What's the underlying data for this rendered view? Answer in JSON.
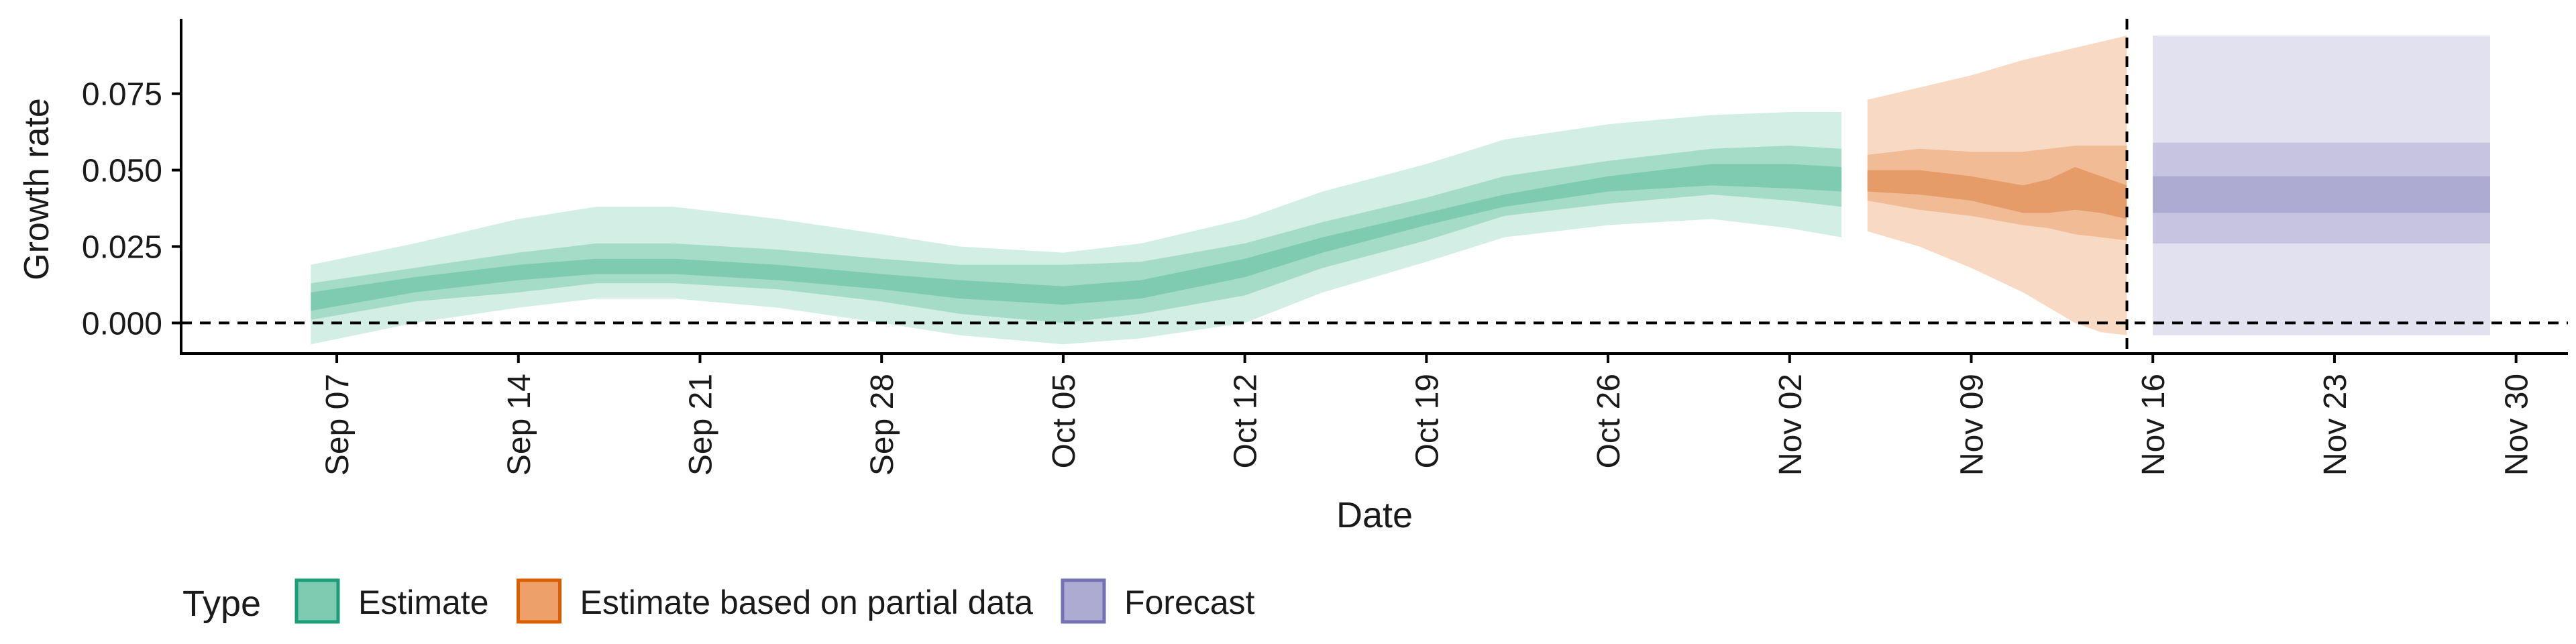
{
  "chart_data": {
    "type": "area",
    "xlabel": "Date",
    "ylabel": "Growth rate",
    "x_type": "date",
    "xlim": [
      "2020-09-01",
      "2020-12-02"
    ],
    "ylim": [
      -0.01,
      0.0995
    ],
    "y_ticks": [
      0.0,
      0.025,
      0.05,
      0.075
    ],
    "y_tick_labels": [
      "0.000",
      "0.025",
      "0.050",
      "0.075"
    ],
    "x_ticks": [
      "2020-09-07",
      "2020-09-14",
      "2020-09-21",
      "2020-09-28",
      "2020-10-05",
      "2020-10-12",
      "2020-10-19",
      "2020-10-26",
      "2020-11-02",
      "2020-11-09",
      "2020-11-16",
      "2020-11-23",
      "2020-11-30"
    ],
    "x_tick_labels": [
      "Sep 07",
      "Sep 14",
      "Sep 21",
      "Sep 28",
      "Oct 05",
      "Oct 12",
      "Oct 19",
      "Oct 26",
      "Nov 02",
      "Nov 09",
      "Nov 16",
      "Nov 23",
      "Nov 30"
    ],
    "reference_lines": [
      {
        "axis": "y",
        "value": 0,
        "style": "dashed"
      },
      {
        "axis": "x",
        "value": "2020-11-15",
        "style": "dashed"
      }
    ],
    "grid": false,
    "legend": {
      "title": "Type",
      "position": "bottom",
      "items": [
        {
          "label": "Estimate",
          "fill": "#7ecbb1",
          "stroke": "#1b9e77"
        },
        {
          "label": "Estimate based on partial data",
          "fill": "#eda06a",
          "stroke": "#d95f02"
        },
        {
          "label": "Forecast",
          "fill": "#aeabd3",
          "stroke": "#7570b3"
        }
      ]
    },
    "series": [
      {
        "name": "Estimate",
        "colors": {
          "outer": "#d3eee4",
          "middle": "#a4dcc8",
          "inner": "#7ecbb1"
        },
        "x": [
          "2020-09-06",
          "2020-09-10",
          "2020-09-14",
          "2020-09-17",
          "2020-09-20",
          "2020-09-24",
          "2020-09-28",
          "2020-10-01",
          "2020-10-05",
          "2020-10-08",
          "2020-10-12",
          "2020-10-15",
          "2020-10-19",
          "2020-10-22",
          "2020-10-26",
          "2020-10-30",
          "2020-11-02",
          "2020-11-04"
        ],
        "outer_low": [
          -0.007,
          0.0,
          0.005,
          0.008,
          0.008,
          0.005,
          0.0,
          -0.004,
          -0.007,
          -0.005,
          0.0,
          0.01,
          0.02,
          0.028,
          0.032,
          0.034,
          0.031,
          0.028
        ],
        "middle_low": [
          0.001,
          0.007,
          0.01,
          0.013,
          0.013,
          0.011,
          0.007,
          0.003,
          0.0,
          0.003,
          0.009,
          0.018,
          0.027,
          0.035,
          0.039,
          0.042,
          0.04,
          0.038
        ],
        "inner_low": [
          0.004,
          0.01,
          0.014,
          0.016,
          0.016,
          0.014,
          0.011,
          0.008,
          0.006,
          0.008,
          0.015,
          0.023,
          0.032,
          0.038,
          0.043,
          0.045,
          0.044,
          0.043
        ],
        "median": [
          0.007,
          0.012,
          0.016,
          0.018,
          0.018,
          0.016,
          0.014,
          0.011,
          0.009,
          0.011,
          0.018,
          0.025,
          0.033,
          0.039,
          0.045,
          0.048,
          0.048,
          0.047
        ],
        "inner_high": [
          0.01,
          0.015,
          0.019,
          0.021,
          0.021,
          0.019,
          0.016,
          0.014,
          0.012,
          0.014,
          0.021,
          0.028,
          0.036,
          0.042,
          0.048,
          0.052,
          0.052,
          0.051
        ],
        "middle_high": [
          0.013,
          0.018,
          0.023,
          0.026,
          0.026,
          0.024,
          0.021,
          0.019,
          0.019,
          0.02,
          0.026,
          0.033,
          0.041,
          0.048,
          0.053,
          0.057,
          0.058,
          0.057
        ],
        "outer_high": [
          0.019,
          0.026,
          0.034,
          0.038,
          0.038,
          0.034,
          0.029,
          0.025,
          0.023,
          0.026,
          0.034,
          0.043,
          0.052,
          0.06,
          0.065,
          0.068,
          0.069,
          0.069
        ]
      },
      {
        "name": "Estimate based on partial data",
        "colors": {
          "outer": "#f7d9c4",
          "middle": "#f0bb95",
          "inner": "#e69c68"
        },
        "x": [
          "2020-11-05",
          "2020-11-07",
          "2020-11-09",
          "2020-11-11",
          "2020-11-12",
          "2020-11-13",
          "2020-11-14",
          "2020-11-15"
        ],
        "outer_low": [
          0.03,
          0.025,
          0.018,
          0.01,
          0.005,
          0.0,
          -0.003,
          -0.004
        ],
        "middle_low": [
          0.04,
          0.037,
          0.035,
          0.032,
          0.031,
          0.029,
          0.028,
          0.027
        ],
        "inner_low": [
          0.043,
          0.042,
          0.04,
          0.036,
          0.036,
          0.037,
          0.036,
          0.034
        ],
        "median": [
          0.046,
          0.046,
          0.044,
          0.041,
          0.042,
          0.044,
          0.041,
          0.04
        ],
        "inner_high": [
          0.05,
          0.05,
          0.048,
          0.045,
          0.047,
          0.051,
          0.048,
          0.045
        ],
        "middle_high": [
          0.055,
          0.057,
          0.056,
          0.056,
          0.057,
          0.058,
          0.058,
          0.058
        ],
        "outer_high": [
          0.073,
          0.077,
          0.081,
          0.086,
          0.088,
          0.09,
          0.092,
          0.094
        ]
      },
      {
        "name": "Forecast",
        "colors": {
          "outer": "#e2e1f0",
          "middle": "#c6c4e1",
          "inner": "#aeabd3"
        },
        "x": [
          "2020-11-16",
          "2020-11-29"
        ],
        "outer_low": [
          -0.004,
          -0.004
        ],
        "middle_low": [
          0.026,
          0.026
        ],
        "inner_low": [
          0.036,
          0.036
        ],
        "median": [
          0.042,
          0.042
        ],
        "inner_high": [
          0.048,
          0.048
        ],
        "middle_high": [
          0.059,
          0.059
        ],
        "outer_high": [
          0.094,
          0.094
        ]
      }
    ]
  }
}
